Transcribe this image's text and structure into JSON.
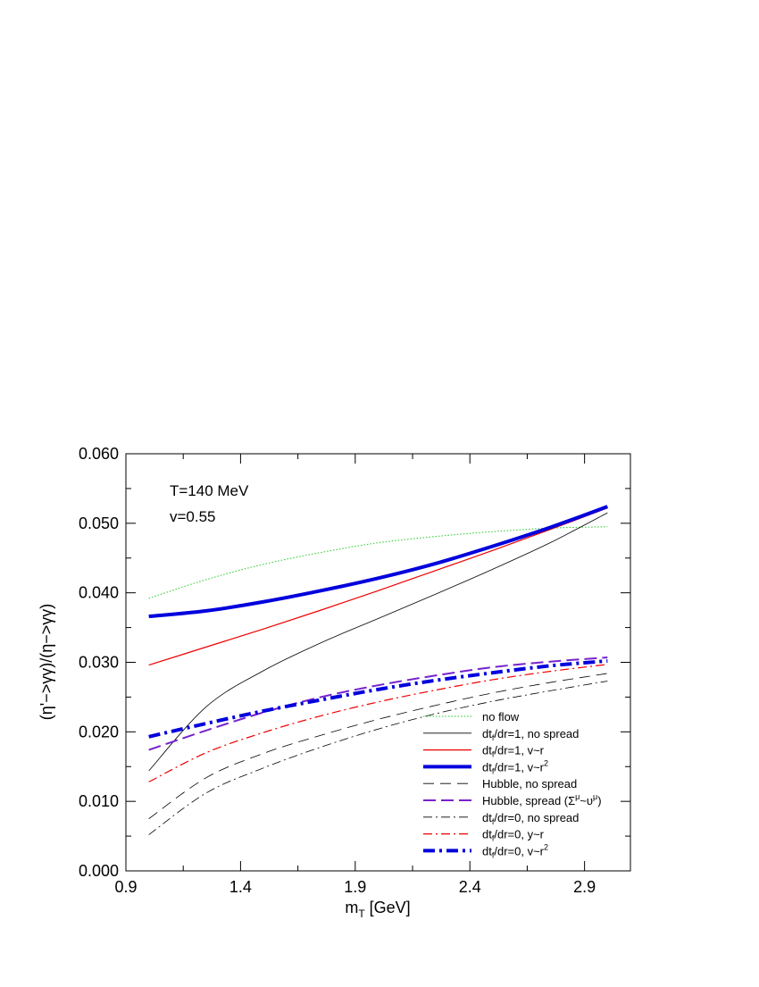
{
  "chart_data": {
    "type": "line",
    "title": "",
    "xlabel": "m",
    "xlabel_sub": "T",
    "xlabel_rest": " [GeV]",
    "ylabel": "(η'−>γγ)/(η−>γγ)",
    "xlim": [
      0.9,
      3.1
    ],
    "ylim": [
      0.0,
      0.06
    ],
    "x_ticks": [
      0.9,
      1.4,
      1.9,
      2.4,
      2.9
    ],
    "x_tick_labels": [
      "0.9",
      "1.4",
      "1.9",
      "2.4",
      "2.9"
    ],
    "y_ticks": [
      0.0,
      0.01,
      0.02,
      0.03,
      0.04,
      0.05,
      0.06
    ],
    "y_tick_labels": [
      "0.000",
      "0.010",
      "0.020",
      "0.030",
      "0.040",
      "0.050",
      "0.060"
    ],
    "grid": false,
    "legend_position": "bottom-right",
    "annotations": [
      "T=140 MeV",
      "v=0.55"
    ],
    "x": [
      1.0,
      1.25,
      1.5,
      1.75,
      2.0,
      2.25,
      2.5,
      2.75,
      3.0
    ],
    "series": [
      {
        "name": "no flow",
        "legend_parts": [
          [
            "no flow",
            ""
          ]
        ],
        "color": "#22cc22",
        "width": 1,
        "dash": "1.5,2",
        "values": [
          0.0392,
          0.0419,
          0.0441,
          0.0458,
          0.0472,
          0.0481,
          0.0488,
          0.0493,
          0.0495
        ]
      },
      {
        "name": "dt/dr=1, no spread",
        "legend_parts": [
          [
            "dt",
            ""
          ],
          [
            "f",
            "sub"
          ],
          [
            "/dr=1, no spread",
            ""
          ]
        ],
        "color": "#000000",
        "width": 0.8,
        "dash": "",
        "values": [
          0.0144,
          0.0236,
          0.0288,
          0.0328,
          0.0363,
          0.0398,
          0.0434,
          0.0472,
          0.0515
        ]
      },
      {
        "name": "dt/dr=1, v~r",
        "legend_parts": [
          [
            "dt",
            ""
          ],
          [
            "f",
            "sub"
          ],
          [
            "/dr=1, v~r",
            ""
          ]
        ],
        "color": "#ee0000",
        "width": 1.2,
        "dash": "",
        "values": [
          0.0296,
          0.0322,
          0.0348,
          0.0375,
          0.0403,
          0.0432,
          0.0461,
          0.0491,
          0.0522
        ]
      },
      {
        "name": "dt/dr=1, v~r2",
        "legend_parts": [
          [
            "dt",
            ""
          ],
          [
            "f",
            "sub"
          ],
          [
            "/dr=1, v~r",
            ""
          ],
          [
            "2",
            "sup"
          ]
        ],
        "color": "#0000dd",
        "width": 4,
        "dash": "",
        "values": [
          0.0366,
          0.0374,
          0.0387,
          0.0403,
          0.0421,
          0.0442,
          0.0467,
          0.0494,
          0.0524
        ]
      },
      {
        "name": "Hubble, no spread",
        "legend_parts": [
          [
            "Hubble, no spread",
            ""
          ]
        ],
        "color": "#000000",
        "width": 0.8,
        "dash": "12,7",
        "values": [
          0.0075,
          0.0134,
          0.0169,
          0.0195,
          0.0218,
          0.0238,
          0.0256,
          0.0271,
          0.0284
        ]
      },
      {
        "name": "Hubble, spread",
        "legend_parts": [
          [
            "Hubble, spread (Σ",
            ""
          ],
          [
            "μ",
            "sup"
          ],
          [
            "~υ",
            ""
          ],
          [
            "μ",
            "sup"
          ],
          [
            ")",
            ""
          ]
        ],
        "color": "#7722cc",
        "width": 2,
        "dash": "14,6",
        "values": [
          0.0174,
          0.0202,
          0.0228,
          0.025,
          0.0267,
          0.0281,
          0.0293,
          0.0301,
          0.0307
        ]
      },
      {
        "name": "dt/dr=0, no spread",
        "legend_parts": [
          [
            "dt",
            ""
          ],
          [
            "f",
            "sub"
          ],
          [
            "/dr=0, no spread",
            ""
          ]
        ],
        "color": "#000000",
        "width": 0.8,
        "dash": "10,4,2,4",
        "values": [
          0.0052,
          0.0112,
          0.0148,
          0.0178,
          0.0204,
          0.0226,
          0.0244,
          0.0259,
          0.0273
        ]
      },
      {
        "name": "dt/dr=0, y~r",
        "legend_parts": [
          [
            "dt",
            ""
          ],
          [
            "f",
            "sub"
          ],
          [
            "/dr=0, y~r",
            ""
          ]
        ],
        "color": "#ee0000",
        "width": 1.2,
        "dash": "10,4,2,4",
        "values": [
          0.0128,
          0.017,
          0.0199,
          0.0223,
          0.0243,
          0.026,
          0.0275,
          0.0287,
          0.0297
        ]
      },
      {
        "name": "dt/dr=0, v~r2",
        "legend_parts": [
          [
            "dt",
            ""
          ],
          [
            "f",
            "sub"
          ],
          [
            "/dr=0, v~r",
            ""
          ],
          [
            "2",
            "sup"
          ]
        ],
        "color": "#0000dd",
        "width": 4,
        "dash": "13,5,3,5",
        "values": [
          0.0193,
          0.0212,
          0.023,
          0.0246,
          0.0261,
          0.0274,
          0.0285,
          0.0295,
          0.0302
        ]
      }
    ]
  }
}
